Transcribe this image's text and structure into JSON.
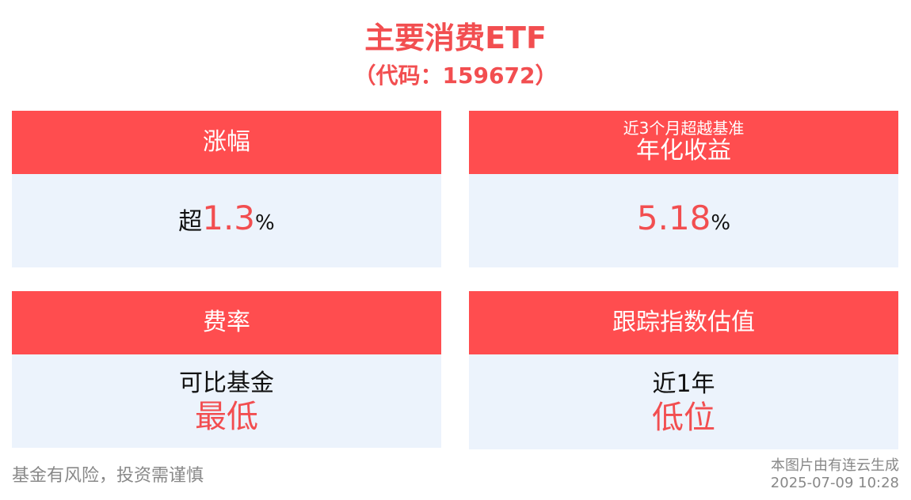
{
  "header": {
    "title": "主要消费ETF",
    "code": "（代码：159672）"
  },
  "cards": {
    "change": {
      "header": "涨幅",
      "prefix": "超",
      "value": "1.3",
      "unit": "%"
    },
    "excess": {
      "header_sub": "近3个月超越基准",
      "header_main": "年化收益",
      "value": "5.18",
      "unit": "%"
    },
    "fee": {
      "header": "费率",
      "line1": "可比基金",
      "line2": "最低"
    },
    "valuation": {
      "header": "跟踪指数估值",
      "line1": "近1年",
      "line2": "低位"
    }
  },
  "footer": {
    "disclaimer": "基金有风险，投资需谨慎",
    "source": "本图片由有连云生成",
    "timestamp": "2025-07-09 10:28"
  },
  "colors": {
    "accent": "#ff4d4f",
    "text_red": "#f24e50",
    "card_bg": "#ecf3fc"
  }
}
